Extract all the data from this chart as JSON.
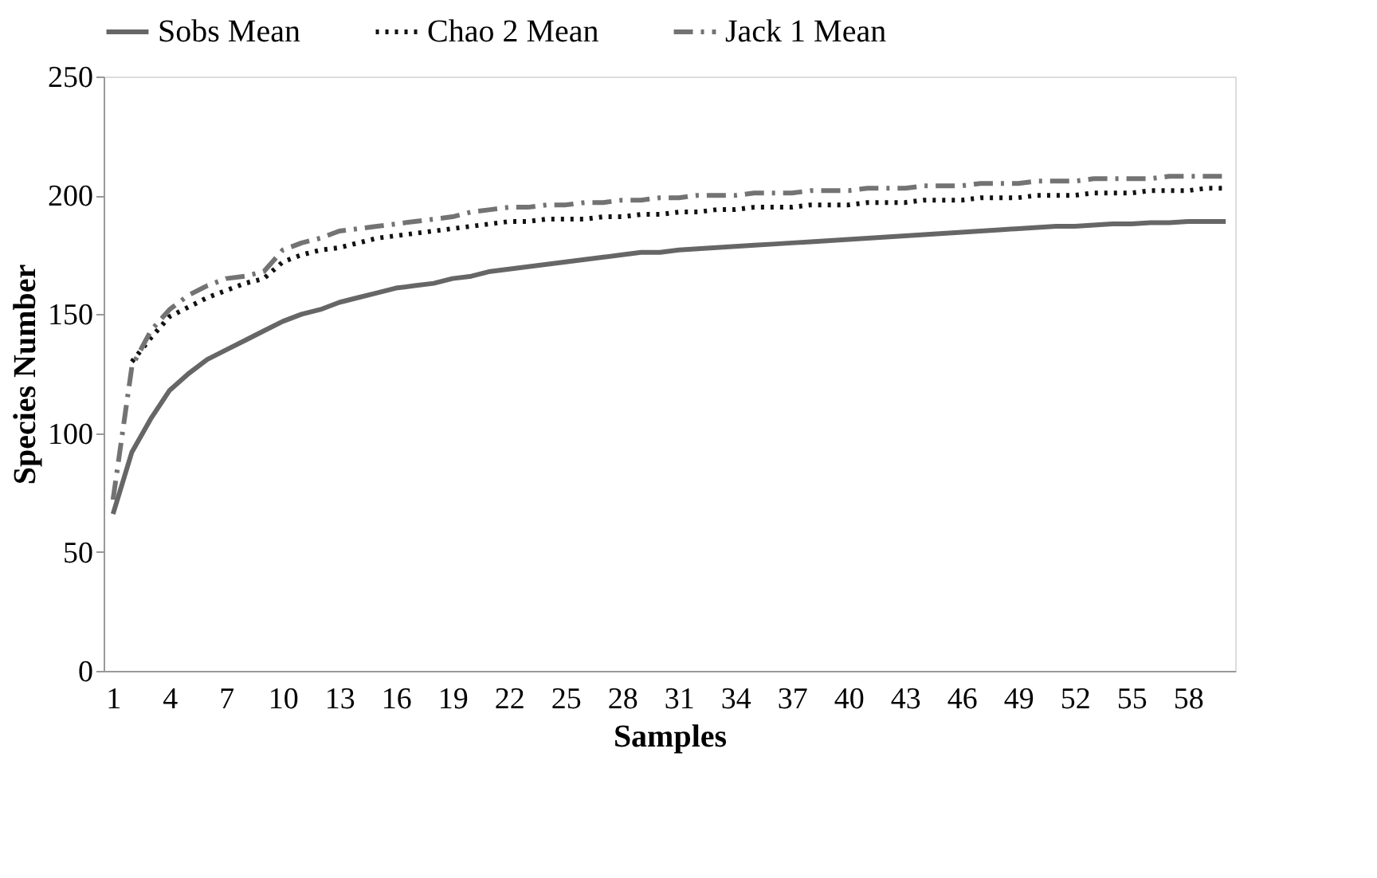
{
  "chart_data": {
    "type": "line",
    "xlabel": "Samples",
    "ylabel": "Species Number",
    "categories": [
      "1",
      null,
      null,
      "4",
      null,
      null,
      "7",
      null,
      null,
      "10",
      null,
      null,
      "13",
      null,
      null,
      "16",
      null,
      null,
      "19",
      null,
      null,
      "22",
      null,
      null,
      "25",
      null,
      null,
      "28",
      null,
      null,
      "31",
      null,
      null,
      "34",
      null,
      null,
      "37",
      null,
      null,
      "40",
      null,
      null,
      "43",
      null,
      null,
      "46",
      null,
      null,
      "49",
      null,
      null,
      "52",
      null,
      null,
      "55",
      null,
      null,
      "58",
      null,
      null
    ],
    "series": [
      {
        "name": "Sobs Mean",
        "color": "#666666",
        "line_style": "solid",
        "values": [
          66,
          92,
          106,
          118,
          125,
          131,
          135,
          139,
          143,
          147,
          150,
          152,
          155,
          157,
          159,
          161,
          162,
          163,
          165,
          166,
          168,
          169,
          170,
          171,
          172,
          173,
          174,
          175,
          176,
          176,
          177,
          177.5,
          178,
          178.5,
          179,
          179.5,
          180,
          180.5,
          181,
          181.5,
          182,
          182.5,
          183,
          183.5,
          184,
          184.5,
          185,
          185.5,
          186,
          186.5,
          187,
          187,
          187.5,
          188,
          188,
          188.5,
          188.5,
          189,
          189,
          189
        ]
      },
      {
        "name": "Chao 2 Mean",
        "color": "#111111",
        "line_style": "dotted",
        "values": [
          null,
          130,
          140,
          149,
          153,
          157,
          160,
          163,
          165,
          172,
          175,
          177,
          178,
          180,
          182,
          183,
          184,
          185,
          186,
          187,
          188,
          189,
          189,
          190,
          190,
          190,
          191,
          191,
          192,
          192,
          193,
          193,
          194,
          194,
          195,
          195,
          195,
          196,
          196,
          196,
          197,
          197,
          197,
          198,
          198,
          198,
          199,
          199,
          199,
          200,
          200,
          200,
          201,
          201,
          201,
          202,
          202,
          202,
          203,
          203
        ]
      },
      {
        "name": "Jack 1 Mean",
        "color": "#737373",
        "line_style": "dashed",
        "values": [
          72,
          128,
          143,
          152,
          158,
          162,
          165,
          166,
          168,
          177,
          180,
          182,
          185,
          186,
          187,
          188,
          189,
          190,
          191,
          193,
          194,
          195,
          195,
          196,
          196,
          197,
          197,
          198,
          198,
          199,
          199,
          200,
          200,
          200,
          201,
          201,
          201,
          202,
          202,
          202,
          203,
          203,
          203,
          204,
          204,
          204,
          205,
          205,
          205,
          206,
          206,
          206,
          207,
          207,
          207,
          207,
          208,
          208,
          208,
          208
        ]
      }
    ],
    "ylim": [
      0,
      250
    ],
    "yticks": [
      0,
      50,
      100,
      150,
      200,
      250
    ],
    "grid": false,
    "legend": "top"
  }
}
